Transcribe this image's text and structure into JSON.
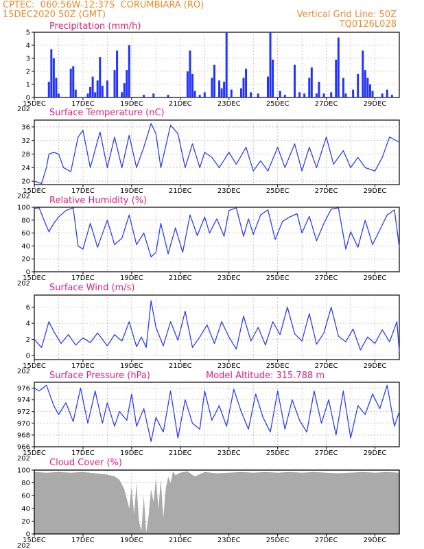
{
  "header": {
    "left_line1": "CPTEC:  060:56W-12:37S  CORUMBIARA (RO)",
    "left_line2": "15DEC2020 50Z (GMT)",
    "right_line1": "Vertical Grid Line: 50Z",
    "right_line2": "TQ0126L028"
  },
  "colors": {
    "line": "#2b3ff0",
    "bar": "#2233ff",
    "cloud": "#aaaaaa",
    "title": "#e0207a",
    "header": "#e8892c"
  },
  "x_ticks": [
    "15DEC",
    "17DEC",
    "19DEC",
    "21DEC",
    "23DEC",
    "25DEC",
    "27DEC",
    "29DEC"
  ],
  "x_tick_prefix": "202",
  "chart_data": [
    {
      "type": "bar",
      "title": "Precipitation (mm/h)",
      "x_range": [
        15,
        30
      ],
      "ylim": [
        0,
        5
      ],
      "yticks": [
        0,
        1,
        2,
        3,
        4,
        5
      ],
      "x": [
        15.6,
        15.7,
        15.8,
        15.9,
        16.0,
        16.5,
        16.6,
        16.7,
        17.2,
        17.3,
        17.4,
        17.5,
        17.6,
        17.7,
        17.8,
        18.0,
        18.3,
        18.4,
        18.6,
        18.7,
        18.8,
        18.9,
        19.5,
        19.9,
        20.5,
        21.3,
        21.4,
        21.5,
        21.6,
        21.8,
        22.0,
        22.3,
        22.4,
        22.6,
        22.7,
        22.8,
        22.9,
        23.1,
        23.5,
        23.6,
        23.7,
        23.9,
        24.2,
        24.6,
        24.7,
        24.8,
        25.1,
        25.3,
        25.7,
        25.9,
        26.1,
        26.3,
        26.4,
        26.6,
        26.7,
        26.9,
        27.2,
        27.4,
        27.5,
        27.7,
        27.8,
        28.1,
        28.3,
        28.5,
        28.6,
        28.7,
        28.8,
        28.9,
        29.3,
        29.5,
        29.7
      ],
      "values": [
        1.2,
        3.7,
        3.0,
        1.5,
        0.3,
        2.2,
        2.4,
        0.6,
        0.3,
        0.8,
        1.6,
        0.4,
        1.3,
        3.1,
        0.9,
        1.3,
        2.1,
        3.6,
        0.4,
        1.1,
        2.1,
        4.0,
        0.2,
        0.3,
        0.2,
        2.0,
        3.6,
        1.8,
        0.5,
        0.2,
        0.4,
        1.5,
        2.5,
        1.3,
        0.7,
        1.2,
        5.0,
        0.6,
        0.7,
        1.5,
        2.2,
        0.4,
        0.3,
        1.6,
        5.0,
        2.9,
        0.5,
        0.2,
        2.5,
        0.4,
        0.3,
        1.5,
        2.3,
        0.3,
        1.2,
        0.3,
        0.4,
        2.9,
        4.6,
        1.5,
        0.3,
        0.6,
        1.8,
        3.6,
        2.1,
        1.5,
        1.0,
        0.5,
        0.3,
        0.6,
        0.2
      ]
    },
    {
      "type": "line",
      "title": "Surface Temperature (nC)",
      "x_range": [
        15,
        30
      ],
      "ylim": [
        19,
        38
      ],
      "yticks": [
        20,
        24,
        28,
        32,
        36
      ],
      "x": [
        15.0,
        15.3,
        15.5,
        15.6,
        15.8,
        16.0,
        16.2,
        16.5,
        16.8,
        17.0,
        17.3,
        17.7,
        18.0,
        18.3,
        18.6,
        18.9,
        19.2,
        19.5,
        19.8,
        20.0,
        20.2,
        20.6,
        20.9,
        21.2,
        21.5,
        21.8,
        22.0,
        22.3,
        22.6,
        23.0,
        23.3,
        23.7,
        24.0,
        24.3,
        24.6,
        25.0,
        25.3,
        25.7,
        26.0,
        26.3,
        26.6,
        27.0,
        27.3,
        27.7,
        28.0,
        28.3,
        28.6,
        29.0,
        29.3,
        29.6,
        30.0
      ],
      "values": [
        20,
        19.3,
        24,
        28,
        28.5,
        28,
        24,
        22.8,
        33,
        35,
        24,
        34.5,
        24,
        33,
        24,
        33.5,
        24,
        30,
        37,
        34,
        24,
        36.5,
        34,
        24,
        31,
        24,
        28.5,
        27,
        24,
        28.5,
        25,
        30,
        23,
        26,
        23,
        30,
        24,
        31,
        23,
        30,
        24,
        33,
        25,
        29,
        24,
        27,
        24,
        23,
        27,
        33,
        31.5
      ]
    },
    {
      "type": "line",
      "title": "Relative Humidity (%)",
      "x_range": [
        15,
        30
      ],
      "ylim": [
        0,
        100
      ],
      "yticks": [
        0,
        20,
        40,
        60,
        80,
        100
      ],
      "x": [
        15.0,
        15.2,
        15.4,
        15.6,
        15.8,
        16.0,
        16.3,
        16.6,
        16.8,
        17.0,
        17.3,
        17.6,
        18.0,
        18.3,
        18.6,
        18.9,
        19.2,
        19.5,
        19.8,
        20.0,
        20.2,
        20.5,
        20.8,
        21.1,
        21.4,
        21.7,
        22.0,
        22.2,
        22.5,
        22.8,
        23.0,
        23.3,
        23.6,
        23.8,
        24.0,
        24.3,
        24.6,
        24.9,
        25.2,
        25.5,
        25.8,
        26.0,
        26.3,
        26.6,
        26.9,
        27.2,
        27.5,
        27.8,
        28.0,
        28.3,
        28.6,
        28.9,
        29.2,
        29.5,
        29.8,
        30.0
      ],
      "values": [
        98,
        99,
        80,
        62,
        75,
        85,
        95,
        99,
        40,
        35,
        75,
        38,
        80,
        42,
        52,
        88,
        42,
        60,
        23,
        30,
        75,
        28,
        68,
        30,
        88,
        56,
        85,
        60,
        82,
        55,
        95,
        99,
        55,
        82,
        58,
        88,
        96,
        50,
        78,
        85,
        90,
        60,
        86,
        48,
        75,
        97,
        99,
        35,
        62,
        38,
        80,
        42,
        65,
        88,
        96,
        38
      ],
      "extra_tick_label": "0"
    },
    {
      "type": "line",
      "title": "Surface Wind (m/s)",
      "x_range": [
        15,
        30
      ],
      "ylim": [
        -0.5,
        7.5
      ],
      "yticks": [
        0,
        2,
        4,
        6
      ],
      "x": [
        15.0,
        15.3,
        15.6,
        15.8,
        16.1,
        16.4,
        16.7,
        17.0,
        17.3,
        17.6,
        18.0,
        18.3,
        18.6,
        18.9,
        19.2,
        19.4,
        19.6,
        19.8,
        20.0,
        20.3,
        20.6,
        20.9,
        21.2,
        21.5,
        21.8,
        22.1,
        22.4,
        22.7,
        23.0,
        23.3,
        23.6,
        23.9,
        24.2,
        24.5,
        24.8,
        25.1,
        25.4,
        25.7,
        26.0,
        26.3,
        26.6,
        26.9,
        27.2,
        27.5,
        27.8,
        28.1,
        28.4,
        28.7,
        29.0,
        29.3,
        29.6,
        29.9,
        30.0
      ],
      "values": [
        2,
        1.0,
        4.2,
        3.0,
        1.5,
        2.6,
        1.3,
        2.2,
        1.6,
        2.8,
        1.2,
        2.6,
        1.8,
        4.2,
        1.1,
        2.3,
        1.0,
        6.8,
        3.5,
        1.2,
        4.2,
        1.9,
        5.5,
        1.0,
        2.3,
        3.8,
        1.5,
        4.2,
        2.3,
        0.8,
        4.9,
        1.8,
        3.5,
        1.3,
        4.2,
        2.6,
        6.0,
        2.7,
        1.8,
        5.2,
        1.4,
        2.8,
        6.0,
        2.4,
        1.7,
        3.3,
        0.7,
        2.3,
        1.5,
        3.2,
        1.7,
        4.2,
        0.5
      ]
    },
    {
      "type": "line",
      "title": "Surface Pressure (hPa)",
      "annotation": "Model Altitude: 315.788 m",
      "x_range": [
        15,
        30
      ],
      "ylim": [
        966,
        977
      ],
      "yticks": [
        966,
        968,
        970,
        972,
        974,
        976
      ],
      "x": [
        15.0,
        15.2,
        15.5,
        15.8,
        16.0,
        16.3,
        16.6,
        16.9,
        17.2,
        17.5,
        17.8,
        18.0,
        18.3,
        18.5,
        18.8,
        19.0,
        19.2,
        19.5,
        19.8,
        20.0,
        20.3,
        20.6,
        20.9,
        21.2,
        21.5,
        21.8,
        22.0,
        22.3,
        22.6,
        22.9,
        23.2,
        23.5,
        23.8,
        24.1,
        24.4,
        24.7,
        25.0,
        25.3,
        25.6,
        25.9,
        26.2,
        26.5,
        26.8,
        27.1,
        27.4,
        27.7,
        28.0,
        28.3,
        28.6,
        28.9,
        29.2,
        29.5,
        29.8,
        30.0
      ],
      "values": [
        976,
        975.5,
        976.5,
        973,
        971.5,
        973.5,
        970.3,
        976,
        970,
        975.5,
        970,
        973.5,
        969.5,
        972,
        970.5,
        975,
        969.5,
        972.5,
        966.9,
        971,
        968.5,
        975.5,
        967.5,
        974,
        970,
        969,
        975.5,
        970.5,
        973,
        969.5,
        975.8,
        972,
        969,
        975,
        971,
        968.5,
        975.5,
        969,
        974,
        970.5,
        968.5,
        975.5,
        970,
        974,
        968,
        975.5,
        967.5,
        973,
        971.5,
        975,
        972.5,
        976.5,
        969.5,
        972
      ]
    },
    {
      "type": "area",
      "title": "Cloud Cover (%)",
      "x_range": [
        15,
        30
      ],
      "ylim": [
        0,
        100
      ],
      "yticks": [
        0,
        20,
        40,
        60,
        80,
        100
      ],
      "x": [
        15.0,
        15.5,
        16.0,
        16.5,
        17.0,
        17.5,
        18.0,
        18.3,
        18.5,
        18.7,
        18.8,
        18.9,
        19.0,
        19.1,
        19.2,
        19.3,
        19.4,
        19.5,
        19.6,
        19.7,
        19.8,
        19.9,
        20.0,
        20.1,
        20.2,
        20.3,
        20.4,
        20.5,
        20.6,
        20.7,
        20.8,
        21.0,
        21.3,
        21.6,
        22.0,
        22.5,
        23.0,
        23.5,
        24.0,
        24.5,
        25.0,
        25.5,
        26.0,
        26.5,
        27.0,
        27.5,
        28.0,
        28.5,
        29.0,
        29.5,
        30.0
      ],
      "values": [
        97,
        96,
        97,
        96,
        97,
        95,
        93,
        90,
        85,
        70,
        55,
        40,
        75,
        30,
        80,
        20,
        5,
        60,
        2,
        30,
        70,
        50,
        88,
        40,
        85,
        25,
        70,
        90,
        80,
        98,
        92,
        96,
        98,
        90,
        97,
        95,
        96,
        97,
        96,
        97,
        96,
        97,
        96,
        97,
        96,
        95,
        96,
        97,
        96,
        97,
        96
      ]
    }
  ]
}
